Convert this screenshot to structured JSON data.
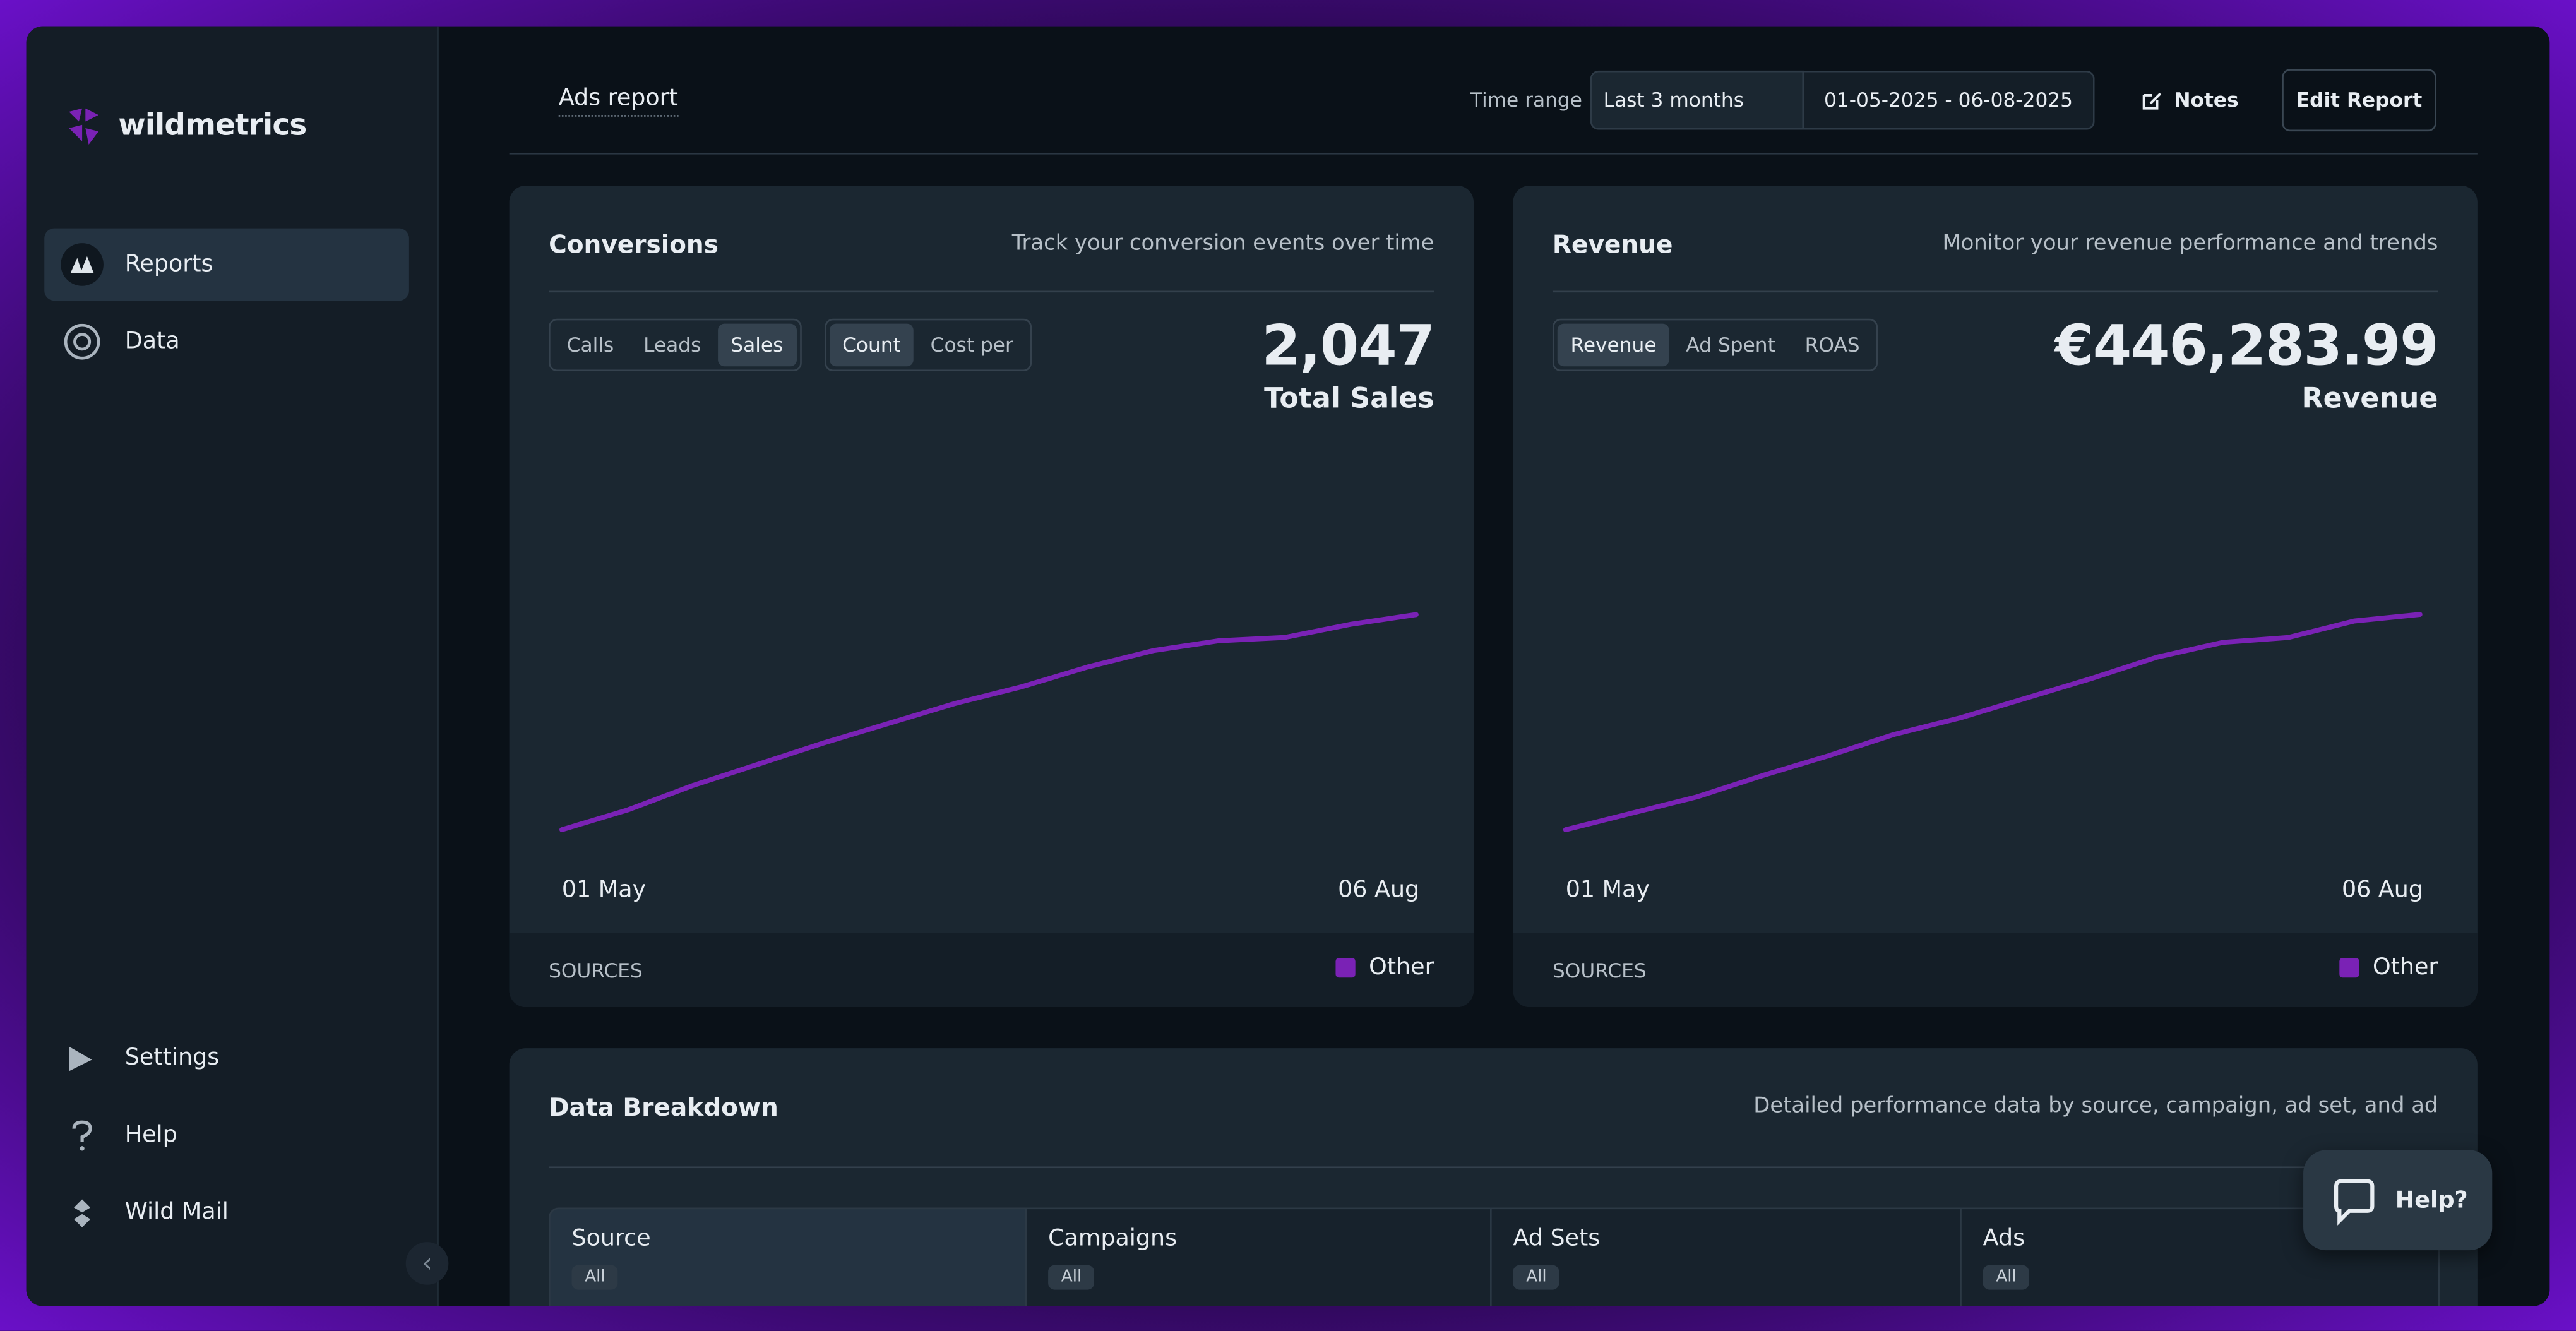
{
  "sidebar": {
    "brand": "wildmetrics",
    "nav": [
      "Reports",
      "Data"
    ],
    "bottom": [
      "Settings",
      "Help",
      "Wild Mail"
    ]
  },
  "header": {
    "title": "Ads report",
    "time_range_label": "Time range",
    "preset": "Last 3 months",
    "dates": "01-05-2025 - 06-08-2025",
    "notes": "Notes",
    "edit": "Edit Report"
  },
  "cards": [
    {
      "title": "Conversions",
      "subtitle": "Track your conversion events over time",
      "tabs": [
        [
          "Calls",
          "Leads",
          "Sales"
        ],
        [
          "Count",
          "Cost per"
        ]
      ],
      "big_number": "2,047",
      "big_label": "Total Sales",
      "sources": "SOURCES",
      "chart_data": {
        "type": "line",
        "categories": [
          "01 May",
          null,
          null,
          null,
          null,
          null,
          null,
          null,
          null,
          null,
          null,
          null,
          null,
          "06 Aug"
        ],
        "series": [
          {
            "name": "Other",
            "color": "#7a22b5",
            "values": [
              145,
              320,
              538,
              727,
              915,
              1090,
              1264,
              1409,
              1584,
              1729,
              1816,
              1845,
              1962,
              2047
            ]
          }
        ],
        "ylim": [
          0,
          3560
        ]
      }
    },
    {
      "title": "Revenue",
      "subtitle": "Monitor your revenue performance and trends",
      "tabs": [
        [
          "Revenue",
          "Ad Spent",
          "ROAS"
        ]
      ],
      "big_number": "€446,283.99",
      "big_label": "Revenue",
      "sources": "SOURCES",
      "chart_data": {
        "type": "line",
        "categories": [
          "01 May",
          null,
          null,
          null,
          null,
          null,
          null,
          null,
          null,
          null,
          null,
          null,
          null,
          "06 Aug"
        ],
        "series": [
          {
            "name": "Other",
            "color": "#7a22b5",
            "values": [
              31653,
              63306,
              94959,
              136109,
              174093,
              215243,
              246896,
              284880,
              322864,
              364014,
              392501,
              401996,
              433649,
              446284
            ]
          }
        ],
        "ylim": [
          0,
          775500
        ]
      }
    }
  ],
  "breakdown": {
    "title": "Data Breakdown",
    "subtitle": "Detailed performance data by source, campaign, ad set, and ad",
    "columns": [
      {
        "name": "Source",
        "filter": "All"
      },
      {
        "name": "Campaigns",
        "filter": "All"
      },
      {
        "name": "Ad Sets",
        "filter": "All"
      },
      {
        "name": "Ads",
        "filter": "All"
      }
    ]
  },
  "help_button": "Help?"
}
